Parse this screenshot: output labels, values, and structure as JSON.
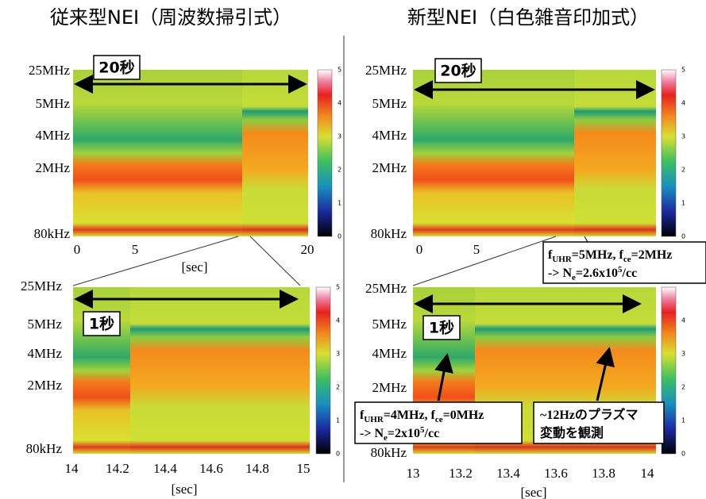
{
  "headings": {
    "left": "従来型NEI（周波数掃引式）",
    "right": "新型NEI（白色雑音印加式）"
  },
  "panels": [
    {
      "y_labels": [
        "25MHz",
        "5MHz",
        "4MHz",
        "2MHz",
        "80kHz"
      ],
      "x_ticks": [
        "0",
        "5",
        "20"
      ],
      "x_label": "[sec]",
      "span_label": "20秒",
      "colorbar_ticks": [
        "0",
        "1",
        "2",
        "3",
        "4",
        "5"
      ]
    },
    {
      "y_labels": [
        "25MHz",
        "5MHz",
        "4MHz",
        "2MHz",
        "80kHz"
      ],
      "x_ticks": [
        "0",
        "5"
      ],
      "span_label": "20秒",
      "colorbar_ticks": [
        "0",
        "1",
        "2",
        "3",
        "4",
        "5"
      ]
    },
    {
      "y_labels": [
        "25MHz",
        "5MHz",
        "4MHz",
        "2MHz",
        "80kHz"
      ],
      "x_ticks": [
        "14",
        "14.2",
        "14.4",
        "14.6",
        "14.8",
        "15"
      ],
      "x_label": "[sec]",
      "span_label": "1秒",
      "colorbar_ticks": [
        "0",
        "1",
        "2",
        "3",
        "4",
        "5"
      ]
    },
    {
      "y_labels": [
        "25MHz",
        "5MHz",
        "4MHz",
        "2MHz",
        "80kHz"
      ],
      "x_ticks": [
        "13",
        "13.2",
        "13.4",
        "13.6",
        "13.8",
        "14"
      ],
      "x_label": "[sec]",
      "span_label": "1秒",
      "colorbar_ticks": [
        "0",
        "1",
        "2",
        "3",
        "4"
      ]
    }
  ],
  "callouts": [
    {
      "line1": [
        "f",
        "UHR",
        "=5MHz, f",
        "ce",
        "=2MHz"
      ],
      "line2": [
        "-> N",
        "e",
        "=2.6x10",
        "5",
        "/cc"
      ]
    },
    {
      "line1": [
        "f",
        "UHR",
        "=4MHz, f",
        "ce",
        "=0MHz"
      ],
      "line2": [
        "-> N",
        "e",
        "=2x10",
        "5",
        "/cc"
      ]
    },
    {
      "line1": [
        "~12Hzのプラズマ"
      ],
      "line2": [
        "変動を観測"
      ]
    }
  ]
}
